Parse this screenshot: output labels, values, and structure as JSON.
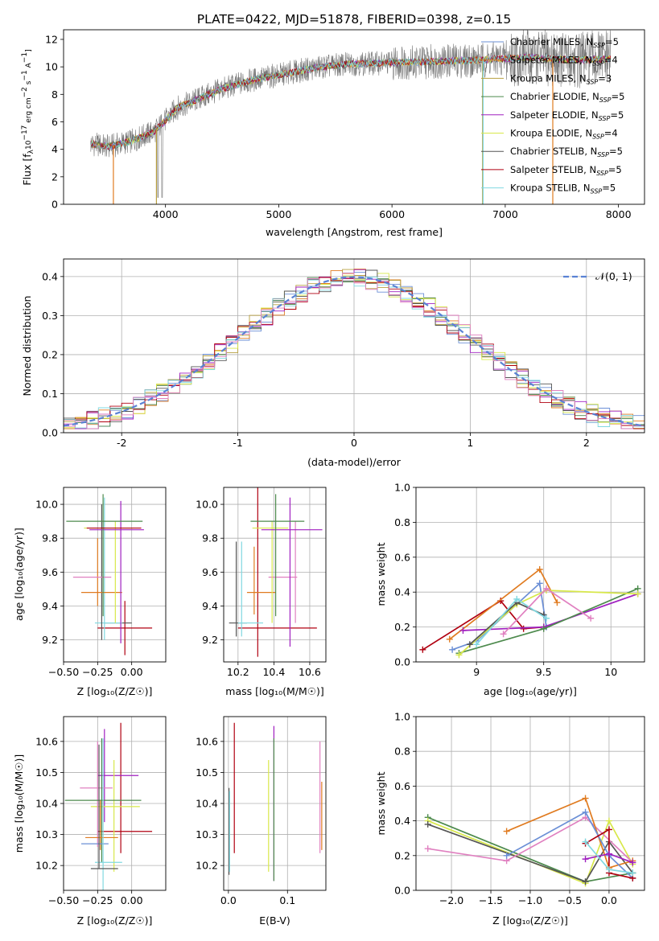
{
  "figure_title": "PLATE=0422, MJD=51878, FIBERID=0398, z=0.15",
  "colors": {
    "chabrier_miles": "#6b8fd6",
    "salpeter_miles": "#e07b20",
    "kroupa_miles": "#b8a040",
    "chabrier_elodie": "#4d8a4d",
    "salpeter_elodie": "#a020c0",
    "kroupa_elodie": "#d8e84a",
    "chabrier_stelib": "#555555",
    "salpeter_stelib": "#b00010",
    "kroupa_stelib": "#80d8e0",
    "pink": "#e080c0",
    "gaussian": "#5a82d4"
  },
  "chart_data": [
    {
      "id": "spectrum",
      "type": "line",
      "xlabel": "wavelength [Angstrom, rest frame]",
      "ylabel_parts": [
        "Flux [f",
        "λ",
        "10",
        "−17",
        " erg cm",
        "−2",
        " s",
        "−1",
        " A",
        "−1",
        "]"
      ],
      "xlim": [
        3100,
        8230
      ],
      "ylim": [
        0,
        12.7
      ],
      "xticks": [
        4000,
        5000,
        6000,
        7000,
        8000
      ],
      "yticks": [
        0,
        2,
        4,
        6,
        8,
        10,
        12
      ],
      "grid": false,
      "legend_placement": "top-right",
      "legend": [
        {
          "name": "Chabrier MILES, N",
          "sub": "SSP",
          "tail": "=5",
          "color": "#6b8fd6"
        },
        {
          "name": "Salpeter MILES, N",
          "sub": "SSP",
          "tail": "=4",
          "color": "#e07b20"
        },
        {
          "name": "Kroupa MILES, N",
          "sub": "SSP",
          "tail": "=3",
          "color": "#b8a040"
        },
        {
          "name": "Chabrier ELODIE, N",
          "sub": "SSP",
          "tail": "=5",
          "color": "#4d8a4d"
        },
        {
          "name": "Salpeter ELODIE, N",
          "sub": "SSP",
          "tail": "=5",
          "color": "#a020c0"
        },
        {
          "name": "Kroupa ELODIE, N",
          "sub": "SSP",
          "tail": "=4",
          "color": "#d8e84a"
        },
        {
          "name": "Chabrier STELIB, N",
          "sub": "SSP",
          "tail": "=5",
          "color": "#555555"
        },
        {
          "name": "Salpeter STELIB, N",
          "sub": "SSP",
          "tail": "=5",
          "color": "#b00010"
        },
        {
          "name": "Kroupa STELIB, N",
          "sub": "SSP",
          "tail": "=5",
          "color": "#80d8e0"
        }
      ],
      "continuum_x": [
        3340,
        3500,
        3700,
        3900,
        4000,
        4100,
        4300,
        4500,
        4800,
        5000,
        5300,
        5600,
        6000,
        6400,
        6800,
        7200,
        7600,
        7900
      ],
      "continuum_y": [
        4.4,
        4.2,
        4.6,
        5.3,
        6.1,
        7.0,
        7.7,
        8.4,
        9.1,
        9.4,
        9.9,
        10.2,
        10.3,
        10.4,
        10.5,
        10.7,
        10.5,
        10.6
      ],
      "drops": [
        {
          "x": 3540,
          "color": "#e07b20"
        },
        {
          "x": 3920,
          "color": "#b8a040"
        },
        {
          "x": 6800,
          "color": "#b8a040"
        },
        {
          "x": 6805,
          "color": "#80d8e0"
        },
        {
          "x": 7420,
          "color": "#e07b20"
        }
      ]
    },
    {
      "id": "residuals",
      "type": "histogram",
      "xlabel": "(data-model)/error",
      "ylabel": "Normed distribution",
      "xlim": [
        -2.5,
        2.5
      ],
      "ylim": [
        0,
        0.445
      ],
      "xticks": [
        -2,
        -1,
        0,
        1,
        2
      ],
      "yticks": [
        0.0,
        0.1,
        0.2,
        0.3,
        0.4
      ],
      "grid": true,
      "bin_width": 0.1,
      "legend": [
        {
          "name": "𝒩(0, 1)",
          "style": "dashed",
          "color": "#5a82d4"
        }
      ],
      "legend_placement": "top-right"
    },
    {
      "id": "age_vs_Z",
      "type": "errorbar",
      "xlabel": "Z [log₁₀(Z/Z☉)]",
      "ylabel": "age  [log₁₀(age/yr)]",
      "xlim": [
        -0.5,
        0.25
      ],
      "ylim": [
        9.07,
        10.1
      ],
      "xticks": [
        -0.5,
        -0.25,
        0.0
      ],
      "xticklabels": [
        "−0.50",
        "−0.25",
        "0.00"
      ],
      "yticks": [
        9.2,
        9.4,
        9.6,
        9.8,
        10.0
      ],
      "grid": true,
      "points": [
        {
          "x": -0.05,
          "xerr": 0.2,
          "y": 9.27,
          "yerr": 0.16,
          "color": "#b00010"
        },
        {
          "x": -0.1,
          "xerr": 0.1,
          "y": 9.3,
          "yerr": 0.0,
          "color": "#555555"
        },
        {
          "x": -0.17,
          "xerr": 0.1,
          "y": 9.3,
          "yerr": 0.0,
          "color": "#80d8e0"
        },
        {
          "x": -0.2,
          "xerr": 0.0,
          "y": 9.62,
          "yerr": 0.42,
          "color": "#80d8e0"
        },
        {
          "x": -0.22,
          "xerr": 0.0,
          "y": 9.6,
          "yerr": 0.4,
          "color": "#555555"
        },
        {
          "x": -0.22,
          "xerr": 0.15,
          "y": 9.48,
          "yerr": 0.0,
          "color": "#e07b20"
        },
        {
          "x": -0.25,
          "xerr": 0.0,
          "y": 9.6,
          "yerr": 0.2,
          "color": "#e07b20"
        },
        {
          "x": -0.29,
          "xerr": 0.14,
          "y": 9.57,
          "yerr": 0.0,
          "color": "#e080c0"
        },
        {
          "x": -0.12,
          "xerr": 0.0,
          "y": 9.6,
          "yerr": 0.3,
          "color": "#d8e84a"
        },
        {
          "x": -0.08,
          "xerr": 0.0,
          "y": 9.6,
          "yerr": 0.42,
          "color": "#a020c0"
        },
        {
          "x": -0.17,
          "xerr": 0.18,
          "y": 9.86,
          "yerr": 0.0,
          "color": "#d8e84a"
        },
        {
          "x": -0.11,
          "xerr": 0.2,
          "y": 9.85,
          "yerr": 0.0,
          "color": "#a020c0"
        },
        {
          "x": -0.2,
          "xerr": 0.28,
          "y": 9.9,
          "yerr": 0.0,
          "color": "#4d8a4d"
        },
        {
          "x": -0.21,
          "xerr": 0.0,
          "y": 9.7,
          "yerr": 0.36,
          "color": "#4d8a4d"
        },
        {
          "x": -0.13,
          "xerr": 0.2,
          "y": 9.86,
          "yerr": 0.0,
          "color": "#b00010"
        }
      ]
    },
    {
      "id": "age_vs_mass",
      "type": "errorbar",
      "xlabel": "mass [log₁₀(M/M☉)]",
      "ylabel": "",
      "xlim": [
        10.12,
        10.69
      ],
      "ylim": [
        9.07,
        10.1
      ],
      "xticks": [
        10.2,
        10.4,
        10.6
      ],
      "yticks": [
        9.2,
        9.4,
        9.6,
        9.8,
        10.0
      ],
      "grid": true,
      "points": [
        {
          "x": 10.42,
          "xerr": 0.22,
          "y": 9.27,
          "yerr": 0.0,
          "color": "#b00010"
        },
        {
          "x": 10.31,
          "xerr": 0.0,
          "y": 9.6,
          "yerr": 0.5,
          "color": "#b00010"
        },
        {
          "x": 10.2,
          "xerr": 0.05,
          "y": 9.3,
          "yerr": 0.0,
          "color": "#555555"
        },
        {
          "x": 10.19,
          "xerr": 0.0,
          "y": 9.5,
          "yerr": 0.28,
          "color": "#555555"
        },
        {
          "x": 10.27,
          "xerr": 0.07,
          "y": 9.3,
          "yerr": 0.0,
          "color": "#80d8e0"
        },
        {
          "x": 10.22,
          "xerr": 0.0,
          "y": 9.5,
          "yerr": 0.28,
          "color": "#80d8e0"
        },
        {
          "x": 10.33,
          "xerr": 0.08,
          "y": 9.48,
          "yerr": 0.0,
          "color": "#e07b20"
        },
        {
          "x": 10.29,
          "xerr": 0.0,
          "y": 9.55,
          "yerr": 0.2,
          "color": "#e07b20"
        },
        {
          "x": 10.45,
          "xerr": 0.08,
          "y": 9.57,
          "yerr": 0.0,
          "color": "#e080c0"
        },
        {
          "x": 10.52,
          "xerr": 0.0,
          "y": 9.6,
          "yerr": 0.3,
          "color": "#e080c0"
        },
        {
          "x": 10.39,
          "xerr": 0.0,
          "y": 9.6,
          "yerr": 0.3,
          "color": "#d8e84a"
        },
        {
          "x": 10.38,
          "xerr": 0.1,
          "y": 9.86,
          "yerr": 0.0,
          "color": "#d8e84a"
        },
        {
          "x": 10.49,
          "xerr": 0.0,
          "y": 9.6,
          "yerr": 0.44,
          "color": "#a020c0"
        },
        {
          "x": 10.5,
          "xerr": 0.17,
          "y": 9.85,
          "yerr": 0.0,
          "color": "#a020c0"
        },
        {
          "x": 10.41,
          "xerr": 0.0,
          "y": 9.7,
          "yerr": 0.36,
          "color": "#4d8a4d"
        },
        {
          "x": 10.42,
          "xerr": 0.15,
          "y": 9.9,
          "yerr": 0.0,
          "color": "#4d8a4d"
        }
      ]
    },
    {
      "id": "weight_vs_age",
      "type": "line",
      "xlabel": "age  [log₁₀(age/yr)]",
      "ylabel": "mass weight",
      "xlim": [
        8.55,
        10.25
      ],
      "ylim": [
        0,
        1
      ],
      "xticks": [
        9.0,
        9.5,
        10.0
      ],
      "yticks": [
        0.0,
        0.2,
        0.4,
        0.6,
        0.8,
        1.0
      ],
      "grid": true,
      "series": [
        {
          "color": "#b00010",
          "x": [
            8.6,
            9.18,
            9.35,
            9.5
          ],
          "y": [
            0.07,
            0.35,
            0.19,
            0.2
          ]
        },
        {
          "color": "#e07b20",
          "x": [
            8.8,
            9.47,
            9.6
          ],
          "y": [
            0.13,
            0.53,
            0.34
          ]
        },
        {
          "color": "#6b8fd6",
          "x": [
            8.82,
            9.0,
            9.47,
            9.52
          ],
          "y": [
            0.07,
            0.12,
            0.45,
            0.2
          ]
        },
        {
          "color": "#a020c0",
          "x": [
            8.9,
            9.5,
            10.2
          ],
          "y": [
            0.18,
            0.2,
            0.39
          ]
        },
        {
          "color": "#4d8a4d",
          "x": [
            8.87,
            9.5,
            10.2
          ],
          "y": [
            0.05,
            0.19,
            0.42
          ]
        },
        {
          "color": "#d8e84a",
          "x": [
            8.87,
            9.3,
            9.52,
            10.2
          ],
          "y": [
            0.04,
            0.33,
            0.41,
            0.39
          ]
        },
        {
          "color": "#555555",
          "x": [
            8.95,
            9.3,
            9.5
          ],
          "y": [
            0.1,
            0.34,
            0.27
          ]
        },
        {
          "color": "#80d8e0",
          "x": [
            9.0,
            9.3,
            9.52
          ],
          "y": [
            0.1,
            0.36,
            0.25
          ]
        },
        {
          "color": "#e080c0",
          "x": [
            9.2,
            9.52,
            9.85
          ],
          "y": [
            0.16,
            0.42,
            0.25
          ]
        }
      ]
    },
    {
      "id": "mass_vs_Z",
      "type": "errorbar",
      "xlabel": "Z [log₁₀(Z/Z☉)]",
      "ylabel": "mass [log₁₀(M/M☉)]",
      "xlim": [
        -0.5,
        0.25
      ],
      "ylim": [
        10.12,
        10.68
      ],
      "xticks": [
        -0.5,
        -0.25,
        0.0
      ],
      "xticklabels": [
        "−0.50",
        "−0.25",
        "0.00"
      ],
      "yticks": [
        10.2,
        10.3,
        10.4,
        10.5,
        10.6
      ],
      "grid": true,
      "points": [
        {
          "x": -0.05,
          "xerr": 0.2,
          "y": 10.31,
          "yerr": 0.0,
          "color": "#b00010"
        },
        {
          "x": -0.08,
          "xerr": 0.0,
          "y": 10.45,
          "yerr": 0.21,
          "color": "#b00010"
        },
        {
          "x": -0.1,
          "xerr": 0.15,
          "y": 10.49,
          "yerr": 0.0,
          "color": "#a020c0"
        },
        {
          "x": -0.2,
          "xerr": 0.0,
          "y": 10.49,
          "yerr": 0.15,
          "color": "#a020c0"
        },
        {
          "x": -0.12,
          "xerr": 0.18,
          "y": 10.39,
          "yerr": 0.0,
          "color": "#d8e84a"
        },
        {
          "x": -0.13,
          "xerr": 0.0,
          "y": 10.36,
          "yerr": 0.18,
          "color": "#d8e84a"
        },
        {
          "x": -0.26,
          "xerr": 0.12,
          "y": 10.45,
          "yerr": 0.0,
          "color": "#e080c0"
        },
        {
          "x": -0.25,
          "xerr": 0.0,
          "y": 10.43,
          "yerr": 0.17,
          "color": "#e080c0"
        },
        {
          "x": -0.21,
          "xerr": 0.28,
          "y": 10.41,
          "yerr": 0.0,
          "color": "#4d8a4d"
        },
        {
          "x": -0.22,
          "xerr": 0.0,
          "y": 10.41,
          "yerr": 0.2,
          "color": "#4d8a4d"
        },
        {
          "x": -0.22,
          "xerr": 0.12,
          "y": 10.29,
          "yerr": 0.0,
          "color": "#e07b20"
        },
        {
          "x": -0.23,
          "xerr": 0.0,
          "y": 10.33,
          "yerr": 0.08,
          "color": "#e07b20"
        },
        {
          "x": -0.27,
          "xerr": 0.1,
          "y": 10.27,
          "yerr": 0.0,
          "color": "#6b8fd6"
        },
        {
          "x": -0.17,
          "xerr": 0.1,
          "y": 10.21,
          "yerr": 0.0,
          "color": "#80d8e0"
        },
        {
          "x": -0.21,
          "xerr": 0.0,
          "y": 10.36,
          "yerr": 0.25,
          "color": "#80d8e0"
        },
        {
          "x": -0.2,
          "xerr": 0.1,
          "y": 10.19,
          "yerr": 0.0,
          "color": "#555555"
        },
        {
          "x": -0.24,
          "xerr": 0.0,
          "y": 10.39,
          "yerr": 0.2,
          "color": "#555555"
        }
      ]
    },
    {
      "id": "mass_vs_ebv",
      "type": "errorbar",
      "xlabel": "E(B-V)",
      "ylabel": "",
      "xlim": [
        -0.008,
        0.165
      ],
      "ylim": [
        10.12,
        10.68
      ],
      "xticks": [
        0.0,
        0.1
      ],
      "xticklabels": [
        "0.0",
        "0.1"
      ],
      "yticks": [
        10.2,
        10.3,
        10.4,
        10.5,
        10.6
      ],
      "grid": true,
      "points": [
        {
          "x": 0.001,
          "xerr": 0.0,
          "y": 10.31,
          "yerr": 0.14,
          "color": "#555555"
        },
        {
          "x": 0.002,
          "xerr": 0.0,
          "y": 10.31,
          "yerr": 0.13,
          "color": "#80d8e0"
        },
        {
          "x": 0.01,
          "xerr": 0.0,
          "y": 10.45,
          "yerr": 0.21,
          "color": "#b00010"
        },
        {
          "x": 0.068,
          "xerr": 0.0,
          "y": 10.36,
          "yerr": 0.18,
          "color": "#d8e84a"
        },
        {
          "x": 0.077,
          "xerr": 0.0,
          "y": 10.4,
          "yerr": 0.25,
          "color": "#a020c0"
        },
        {
          "x": 0.077,
          "xerr": 0.0,
          "y": 10.38,
          "yerr": 0.23,
          "color": "#4d8a4d"
        },
        {
          "x": 0.155,
          "xerr": 0.0,
          "y": 10.42,
          "yerr": 0.18,
          "color": "#e080c0"
        },
        {
          "x": 0.158,
          "xerr": 0.0,
          "y": 10.36,
          "yerr": 0.11,
          "color": "#e07b20"
        }
      ]
    },
    {
      "id": "weight_vs_Z",
      "type": "line",
      "xlabel": "Z [log₁₀(Z/Z☉)]",
      "ylabel": "mass weight",
      "xlim": [
        -2.45,
        0.45
      ],
      "ylim": [
        0,
        1
      ],
      "xticks": [
        -2.0,
        -1.5,
        -1.0,
        -0.5,
        0.0
      ],
      "xticklabels": [
        "−2.0",
        "−1.5",
        "−1.0",
        "−0.5",
        "0.0"
      ],
      "yticks": [
        0.0,
        0.2,
        0.4,
        0.6,
        0.8,
        1.0
      ],
      "grid": true,
      "series": [
        {
          "color": "#4d8a4d",
          "x": [
            -2.3,
            -0.3,
            0.3
          ],
          "y": [
            0.42,
            0.05,
            0.1
          ]
        },
        {
          "color": "#d8e84a",
          "x": [
            -2.3,
            -0.3,
            0.0,
            0.3
          ],
          "y": [
            0.4,
            0.04,
            0.4,
            0.15
          ]
        },
        {
          "color": "#555555",
          "x": [
            -2.3,
            -0.3,
            0.0,
            0.3
          ],
          "y": [
            0.38,
            0.05,
            0.28,
            0.1
          ]
        },
        {
          "color": "#e080c0",
          "x": [
            -2.3,
            -1.3,
            -0.3,
            0.3
          ],
          "y": [
            0.24,
            0.17,
            0.42,
            0.16
          ]
        },
        {
          "color": "#e07b20",
          "x": [
            -1.3,
            -0.3,
            0.0,
            0.3
          ],
          "y": [
            0.34,
            0.53,
            0.13,
            0.17
          ]
        },
        {
          "color": "#6b8fd6",
          "x": [
            -1.3,
            -0.3,
            0.0,
            0.3
          ],
          "y": [
            0.2,
            0.45,
            0.2,
            0.07
          ]
        },
        {
          "color": "#b00010",
          "x": [
            -0.3,
            0.0,
            0.0,
            0.3
          ],
          "y": [
            0.27,
            0.35,
            0.1,
            0.07
          ]
        },
        {
          "color": "#a020c0",
          "x": [
            -0.3,
            0.0,
            0.3
          ],
          "y": [
            0.18,
            0.21,
            0.16
          ]
        },
        {
          "color": "#80d8e0",
          "x": [
            -0.3,
            0.0,
            0.3
          ],
          "y": [
            0.28,
            0.12,
            0.1
          ]
        }
      ]
    }
  ]
}
